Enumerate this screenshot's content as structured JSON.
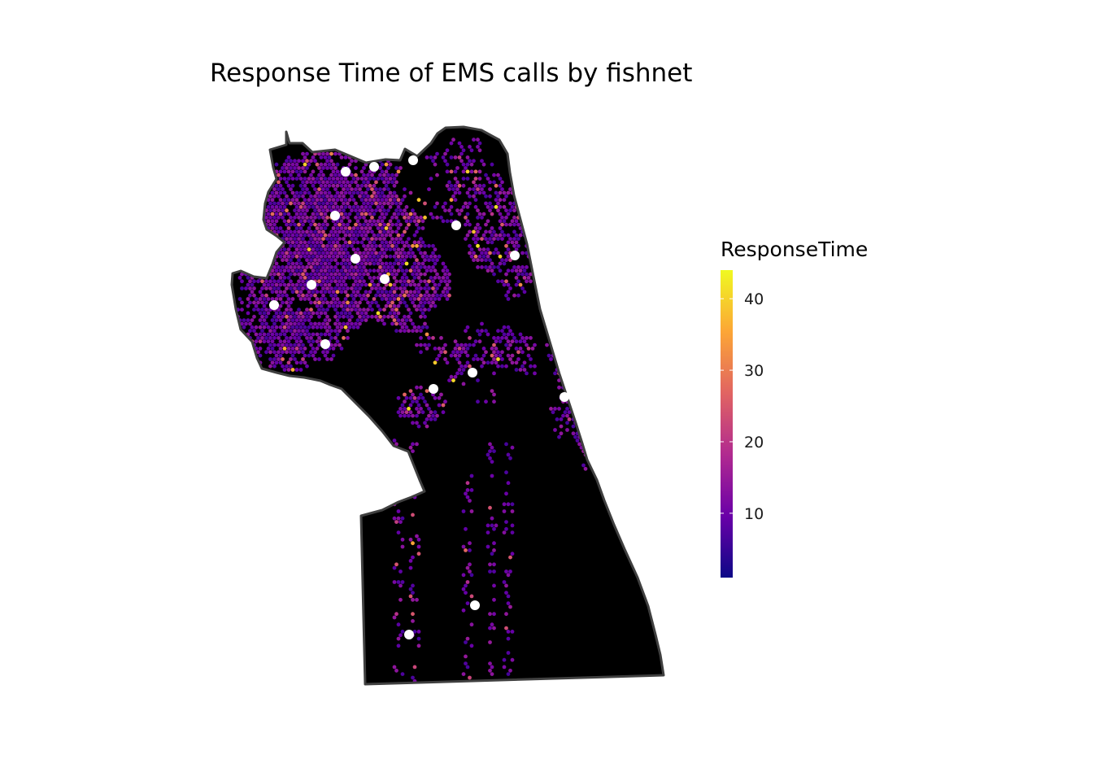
{
  "title": "Response Time of EMS calls by fishnet",
  "legend": {
    "title": "ResponseTime",
    "min": 1,
    "max": 44,
    "ticks": [
      {
        "value": 10,
        "label": "10"
      },
      {
        "value": 20,
        "label": "20"
      },
      {
        "value": 30,
        "label": "30"
      },
      {
        "value": 40,
        "label": "40"
      }
    ],
    "palette": [
      "#0d0887",
      "#6a00a8",
      "#b12a90",
      "#e16462",
      "#fca636",
      "#f0f921"
    ]
  },
  "colors": {
    "area_fill": "#000000",
    "boundary_stroke": "#404040",
    "station_marker": "#ffffff"
  },
  "layers": {
    "fishnet_cells": "EMS response time fishnet cells",
    "stations": "White dots at fixed locations",
    "boundary": "Study area outline"
  }
}
